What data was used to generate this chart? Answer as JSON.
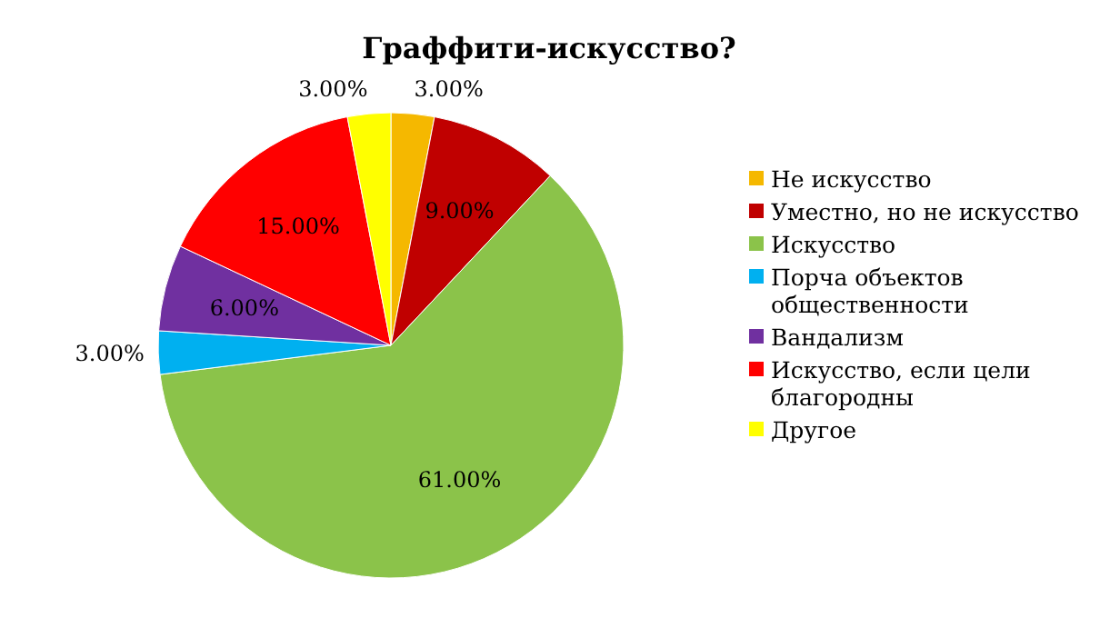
{
  "chart_data": {
    "type": "pie",
    "title": "Граффити-искусство?",
    "categories": [
      "Не искусство",
      "Уместно, но не искусство",
      "Искусство",
      "Порча объектов общественности",
      "Вандализм",
      "Искусство, если цели благородны",
      "Другое"
    ],
    "values": [
      3,
      9,
      61,
      3,
      6,
      15,
      3
    ],
    "colors": [
      "#f5b800",
      "#c00000",
      "#8bc34a",
      "#00b0f0",
      "#7030a0",
      "#ff0000",
      "#ffff00"
    ],
    "value_labels": [
      "3.00%",
      "9.00%",
      "61.00%",
      "3.00%",
      "6.00%",
      "15.00%",
      "3.00%"
    ],
    "legend": "right"
  }
}
